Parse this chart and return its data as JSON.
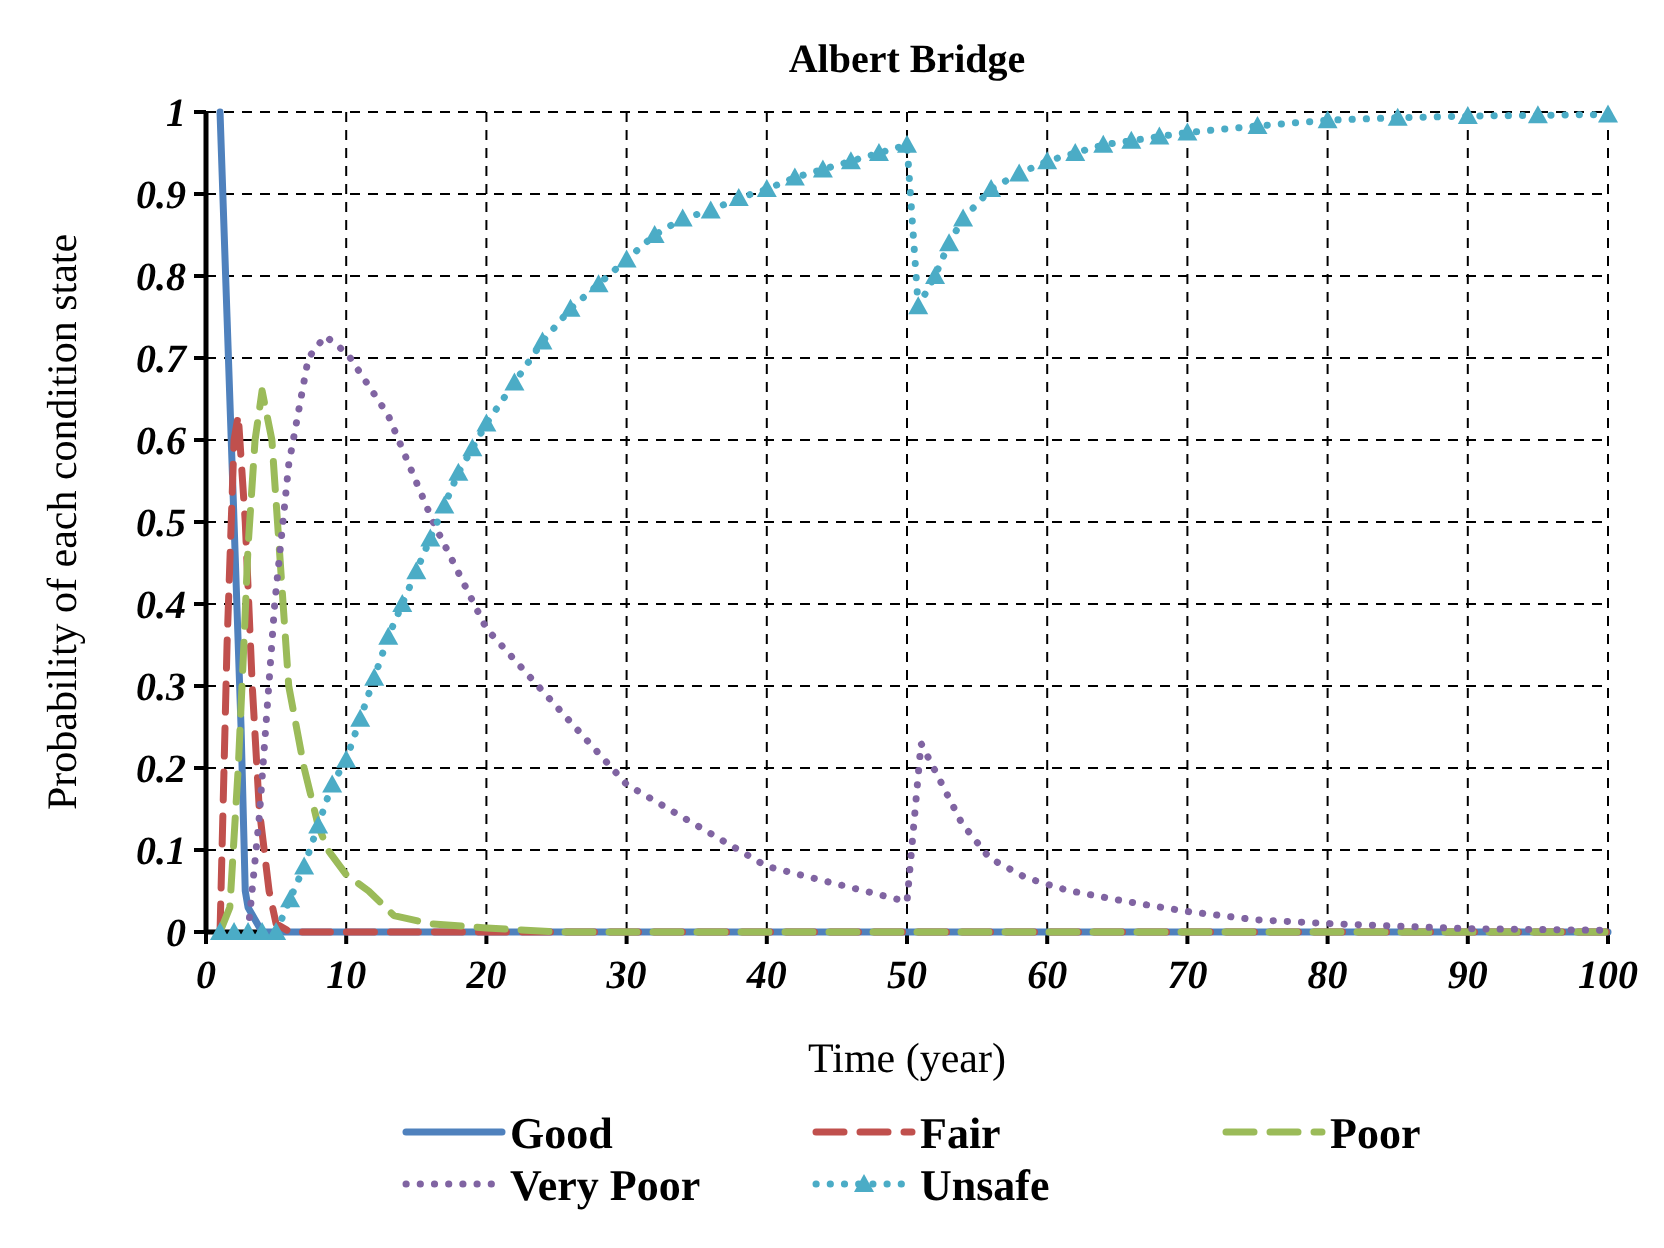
{
  "chart_data": {
    "type": "line",
    "title": "Albert Bridge",
    "xlabel": "Time (year)",
    "ylabel": "Probability of each  condition state",
    "xlim": [
      0,
      100
    ],
    "xticks": [
      0,
      10,
      20,
      30,
      40,
      50,
      60,
      70,
      80,
      90,
      100
    ],
    "ylim": [
      0,
      1
    ],
    "yticks": [
      0,
      0.1,
      0.2,
      0.3,
      0.4,
      0.5,
      0.6,
      0.7,
      0.8,
      0.9,
      1
    ],
    "grid": true,
    "legend": "bottom",
    "series": [
      {
        "name": "Good",
        "color": "#4f81bd",
        "line_style": "solid",
        "marker": "none",
        "x": [
          1,
          1.5,
          2,
          2.5,
          2.8,
          3,
          4,
          100
        ],
        "values": [
          1,
          0.75,
          0.5,
          0.25,
          0.05,
          0.03,
          0,
          0
        ]
      },
      {
        "name": "Fair",
        "color": "#c0504d",
        "line_style": "dashed",
        "marker": "none",
        "x": [
          1,
          1.5,
          2,
          2.3,
          2.8,
          3.3,
          3.8,
          4.5,
          5,
          6,
          100
        ],
        "values": [
          0,
          0.35,
          0.6,
          0.63,
          0.5,
          0.3,
          0.15,
          0.05,
          0.01,
          0,
          0
        ]
      },
      {
        "name": "Poor",
        "color": "#9bbb59",
        "line_style": "dashed",
        "marker": "none",
        "x": [
          1,
          1.7,
          2.3,
          2.7,
          3,
          3.5,
          4,
          4.7,
          5.3,
          5.9,
          7,
          8,
          8.7,
          10,
          11.6,
          13.4,
          16,
          20,
          25,
          100
        ],
        "values": [
          0,
          0.03,
          0.2,
          0.35,
          0.47,
          0.6,
          0.66,
          0.6,
          0.45,
          0.3,
          0.2,
          0.13,
          0.1,
          0.07,
          0.05,
          0.02,
          0.01,
          0.005,
          0,
          0
        ]
      },
      {
        "name": "Very Poor",
        "color": "#8064a2",
        "line_style": "dotted",
        "marker": "none",
        "x": [
          1,
          3,
          3.8,
          4.9,
          5.9,
          7.3,
          8.5,
          10.1,
          13,
          16.2,
          20,
          30,
          40,
          50,
          51,
          52.5,
          53.9,
          55.9,
          58.5,
          61.4,
          65.7,
          70,
          74.8,
          80.4,
          90,
          100
        ],
        "values": [
          0,
          0,
          0.14,
          0.4,
          0.57,
          0.7,
          0.727,
          0.705,
          0.63,
          0.5,
          0.37,
          0.18,
          0.08,
          0.037,
          0.23,
          0.18,
          0.133,
          0.09,
          0.066,
          0.051,
          0.037,
          0.025,
          0.015,
          0.01,
          0.004,
          0.002
        ]
      },
      {
        "name": "Unsafe",
        "color": "#4bacc6",
        "line_style": "dotted",
        "marker": "triangle",
        "x": [
          1,
          2,
          3,
          4,
          5,
          6,
          7,
          8,
          9,
          10,
          11,
          12,
          13,
          14,
          15,
          16,
          17,
          18,
          19,
          20,
          22,
          24,
          26,
          28,
          30,
          32,
          34,
          36,
          38,
          40,
          42,
          44,
          46,
          48,
          50,
          50.8,
          52,
          53,
          54,
          56,
          58,
          60,
          62,
          64,
          66,
          68,
          70,
          75,
          80,
          85,
          90,
          95,
          100
        ],
        "values": [
          0,
          0,
          0,
          0,
          0,
          0.04,
          0.08,
          0.13,
          0.18,
          0.21,
          0.26,
          0.31,
          0.36,
          0.4,
          0.44,
          0.48,
          0.52,
          0.56,
          0.59,
          0.62,
          0.67,
          0.72,
          0.76,
          0.79,
          0.82,
          0.85,
          0.87,
          0.88,
          0.895,
          0.906,
          0.92,
          0.93,
          0.94,
          0.95,
          0.96,
          0.763,
          0.8,
          0.84,
          0.87,
          0.906,
          0.925,
          0.94,
          0.95,
          0.96,
          0.965,
          0.97,
          0.975,
          0.983,
          0.99,
          0.993,
          0.995,
          0.996,
          0.997
        ]
      }
    ]
  }
}
